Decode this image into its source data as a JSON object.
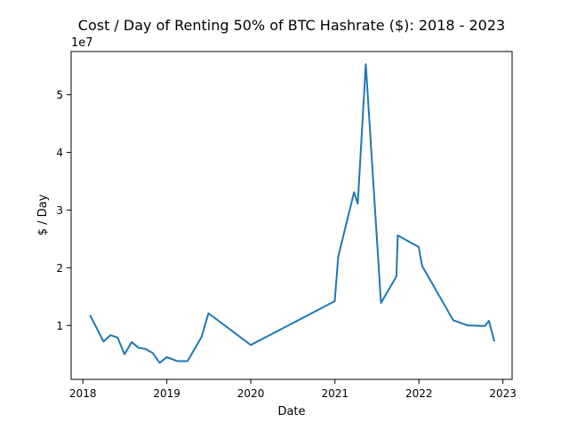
{
  "chart_data": {
    "type": "line",
    "title": "Cost / Day of Renting 50% of BTC Hashrate ($): 2018 - 2023",
    "xlabel": "Date",
    "ylabel": "$ / Day",
    "y_offset_label": "1e7",
    "xlim": [
      "2017-11-11",
      "2023-02-10"
    ],
    "ylim": [
      640000,
      57500000
    ],
    "x_ticks": [
      {
        "date": "2018-01-01",
        "label": "2018"
      },
      {
        "date": "2019-01-01",
        "label": "2019"
      },
      {
        "date": "2020-01-01",
        "label": "2020"
      },
      {
        "date": "2021-01-01",
        "label": "2021"
      },
      {
        "date": "2022-01-01",
        "label": "2022"
      },
      {
        "date": "2023-01-01",
        "label": "2023"
      }
    ],
    "y_ticks": [
      {
        "value": 10000000,
        "label": "1"
      },
      {
        "value": 20000000,
        "label": "2"
      },
      {
        "value": 30000000,
        "label": "3"
      },
      {
        "value": 40000000,
        "label": "4"
      },
      {
        "value": 50000000,
        "label": "5"
      }
    ],
    "grid": false,
    "color": "#1f77b4",
    "series": [
      {
        "x": [
          "2018-02-01",
          "2018-04-01",
          "2018-05-01",
          "2018-06-01",
          "2018-07-01",
          "2018-08-01",
          "2018-09-01",
          "2018-10-01",
          "2018-11-01",
          "2018-12-01",
          "2019-01-01",
          "2019-02-15",
          "2019-04-01",
          "2019-06-01",
          "2019-07-01",
          "2020-01-01",
          "2020-12-31",
          "2021-01-15",
          "2021-03-25",
          "2021-04-10",
          "2021-05-15",
          "2021-07-20",
          "2021-09-25",
          "2021-10-01",
          "2021-12-31",
          "2022-01-15",
          "2022-05-30",
          "2022-08-01",
          "2022-10-15",
          "2022-11-01",
          "2022-11-25"
        ],
        "y": [
          11800000,
          7200000,
          8300000,
          7900000,
          5000000,
          7100000,
          6100000,
          5900000,
          5200000,
          3500000,
          4500000,
          3800000,
          3800000,
          8000000,
          12100000,
          6600000,
          14200000,
          21900000,
          33100000,
          31100000,
          55300000,
          13900000,
          18500000,
          25600000,
          23600000,
          20300000,
          10900000,
          10000000,
          9900000,
          10800000,
          7200000
        ]
      }
    ]
  }
}
